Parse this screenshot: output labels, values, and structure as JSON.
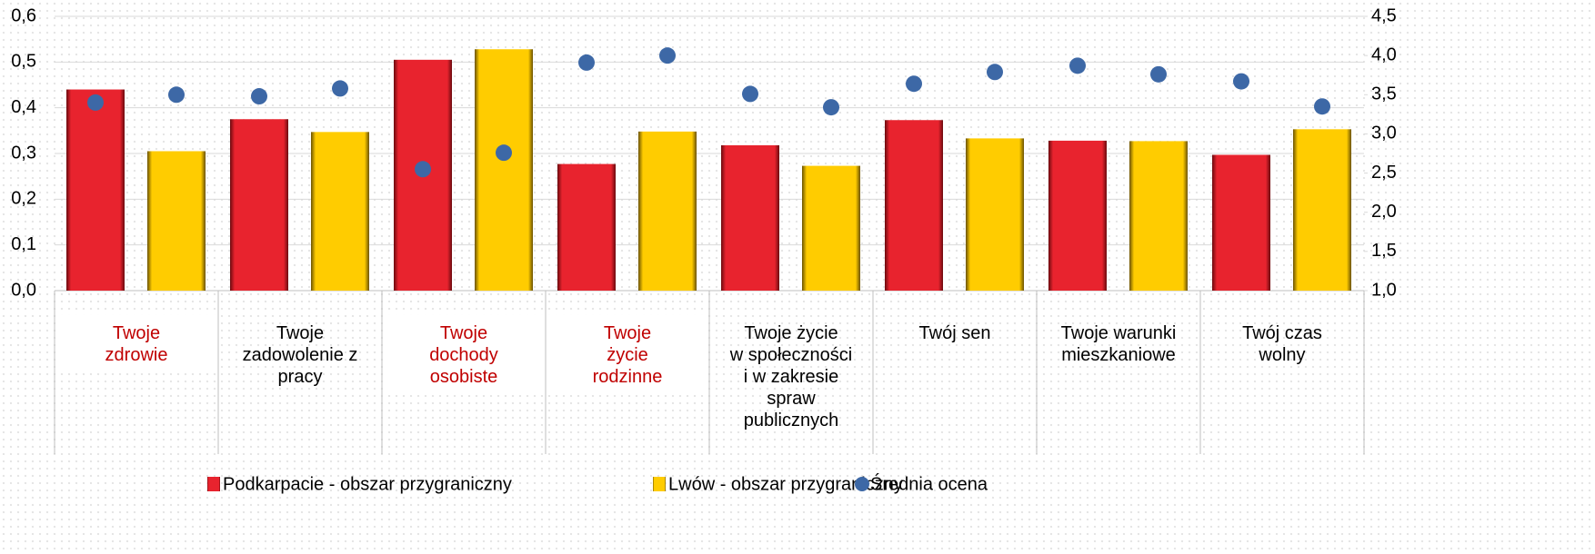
{
  "chart_data": {
    "type": "bar",
    "categories": [
      "Twoje\nzdrowie",
      "Twoje\nzadowolenie z\npracy",
      "Twoje\ndochody\nosobiste",
      "Twoje\nżycie\nrodzinne",
      "Twoje życie\nw społeczności\ni w zakresie\nspraw\npublicznych",
      "Twój sen",
      "Twoje warunki\nmieszkaniowe",
      "Twój czas\nwolny"
    ],
    "category_colors": [
      "#c00000",
      "#000000",
      "#c00000",
      "#c00000",
      "#000000",
      "#000000",
      "#000000",
      "#000000"
    ],
    "series": [
      {
        "name": "Podkarpacie - obszar przygraniczny",
        "color": "#e8232e",
        "values": [
          0.44,
          0.375,
          0.505,
          0.277,
          0.318,
          0.373,
          0.328,
          0.297
        ]
      },
      {
        "name": "Lwów - obszar przygraniczny",
        "color": "#ffcc00",
        "values": [
          0.305,
          0.347,
          0.528,
          0.348,
          0.273,
          0.333,
          0.327,
          0.353
        ]
      },
      {
        "name": "Średnia ocena",
        "color": "#3d68a6",
        "type": "scatter",
        "axis": "y2",
        "values": [
          [
            3.4,
            3.5
          ],
          [
            3.48,
            3.58
          ],
          [
            2.55,
            2.76
          ],
          [
            3.91,
            4.0
          ],
          [
            3.51,
            3.34
          ],
          [
            3.64,
            3.79
          ],
          [
            3.87,
            3.76
          ],
          [
            3.67,
            3.35
          ]
        ]
      }
    ],
    "ylim": [
      0,
      0.6
    ],
    "yticks": [
      {
        "value": 0,
        "label": "0,0"
      },
      {
        "value": 0.1,
        "label": "0,1"
      },
      {
        "value": 0.2,
        "label": "0,2"
      },
      {
        "value": 0.3,
        "label": "0,3"
      },
      {
        "value": 0.4,
        "label": "0,4"
      },
      {
        "value": 0.5,
        "label": "0,5"
      },
      {
        "value": 0.6,
        "label": "0,6"
      }
    ],
    "y2lim": [
      1,
      4.5
    ],
    "y2ticks": [
      {
        "value": 1,
        "label": "1,0"
      },
      {
        "value": 1.5,
        "label": "1,5"
      },
      {
        "value": 2,
        "label": "2,0"
      },
      {
        "value": 2.5,
        "label": "2,5"
      },
      {
        "value": 3,
        "label": "3,0"
      },
      {
        "value": 3.5,
        "label": "3,5"
      },
      {
        "value": 4,
        "label": "4,0"
      },
      {
        "value": 4.5,
        "label": "4,5"
      }
    ],
    "grid": true,
    "legend": "bottom"
  }
}
